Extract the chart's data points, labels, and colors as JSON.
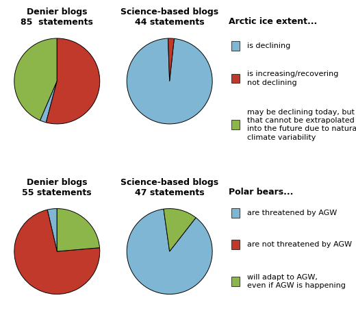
{
  "arctic_denier": {
    "title_line1": "Denier blogs",
    "title_line2": "85  statements",
    "values": [
      37,
      2,
      46
    ],
    "colors": [
      "#8DB64A",
      "#7EB6D4",
      "#C0392B"
    ],
    "startangle": 90
  },
  "arctic_science": {
    "title_line1": "Science-based blogs",
    "title_line2": "44 statements",
    "values": [
      43,
      1,
      0
    ],
    "colors": [
      "#7EB6D4",
      "#C0392B",
      "#8DB64A"
    ],
    "startangle": 92
  },
  "polar_denier": {
    "title_line1": "Denier blogs",
    "title_line2": "55 statements",
    "values": [
      2,
      40,
      13
    ],
    "colors": [
      "#7EB6D4",
      "#C0392B",
      "#8DB64A"
    ],
    "startangle": 90
  },
  "polar_science": {
    "title_line1": "Science-based blogs",
    "title_line2": "47 statements",
    "values": [
      41,
      6,
      0
    ],
    "colors": [
      "#7EB6D4",
      "#8DB64A",
      "#C0392B"
    ],
    "startangle": 98
  },
  "arctic_legend_title": "Arctic ice extent...",
  "arctic_legend_labels": [
    "is declining",
    "is increasing/recovering\nnot declining",
    "may be declining today, but\nthat cannot be extrapolated\ninto the future due to natural\nclimate variability"
  ],
  "polar_legend_title": "Polar bears...",
  "polar_legend_labels": [
    "are threatened by AGW",
    "are not threatened by AGW",
    "will adapt to AGW,\neven if AGW is happening"
  ],
  "legend_colors": [
    "#7EB6D4",
    "#C0392B",
    "#8DB64A"
  ],
  "bg_color": "#FFFFFF",
  "title_fontsize": 9,
  "legend_fontsize": 9
}
